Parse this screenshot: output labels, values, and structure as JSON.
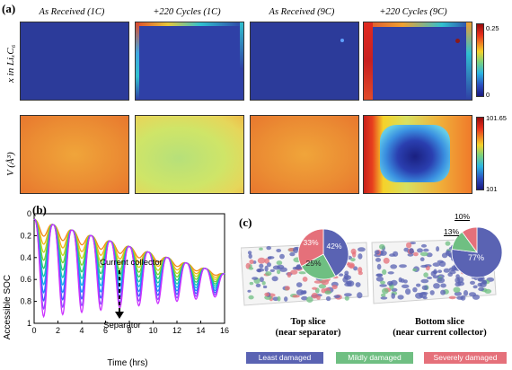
{
  "panel_a": {
    "letter": "(a)",
    "columns": [
      "As Received (1C)",
      "+220 Cycles (1C)",
      "As Received (9C)",
      "+220 Cycles (9C)"
    ],
    "row1_label": "x in LiₓC₆",
    "row2_label": "V (Å³)",
    "cbar1": {
      "max": "0.25",
      "min": "0"
    },
    "cbar2": {
      "max": "101.65",
      "min": "101"
    }
  },
  "panel_b": {
    "letter": "(b)",
    "annotation_top": "Current collector",
    "annotation_bottom": "Separator",
    "chart_data": {
      "type": "line",
      "xlabel": "Time (hrs)",
      "ylabel": "Accessible SOC",
      "xlim": [
        0,
        16
      ],
      "ylim": [
        1,
        0
      ],
      "xticks": [
        "0",
        "2",
        "4",
        "6",
        "8",
        "10",
        "12",
        "14",
        "16"
      ],
      "yticks": [
        "0",
        "0.2",
        "0.4",
        "0.6",
        "0.8",
        "1"
      ],
      "series_count": 11,
      "cycle_period_hrs": 1.6,
      "envelope": {
        "top_of_dips_at_start": 0.05,
        "top_of_dips_at_end": 0.55,
        "bottom_of_dips_at_start": 0.95,
        "bottom_of_dips_at_end": 0.75
      },
      "series_colors": [
        "#cc33ff",
        "#8a4dff",
        "#3b5bff",
        "#1a8cff",
        "#16b3e6",
        "#17c7a8",
        "#30c96a",
        "#7fd12e",
        "#c6d41f",
        "#f0b21a",
        "#f08a1a"
      ]
    }
  },
  "panel_c": {
    "letter": "(c)",
    "top_slice": {
      "label_line1": "Top slice",
      "label_line2": "(near separator)",
      "pie": {
        "least": "42%",
        "mildly": "25%",
        "severely": "33%",
        "least_value": 42,
        "mildly_value": 25,
        "severely_value": 33
      }
    },
    "bottom_slice": {
      "label_line1": "Bottom slice",
      "label_line2": "(near current collector)",
      "pie": {
        "least": "77%",
        "mildly": "13%",
        "severely": "10%",
        "least_value": 77,
        "mildly_value": 13,
        "severely_value": 10
      }
    },
    "legend": [
      {
        "label": "Least damaged",
        "color": "#5a63b3"
      },
      {
        "label": "Mildly damaged",
        "color": "#6fbf82"
      },
      {
        "label": "Severely damaged",
        "color": "#e5707a"
      }
    ]
  }
}
